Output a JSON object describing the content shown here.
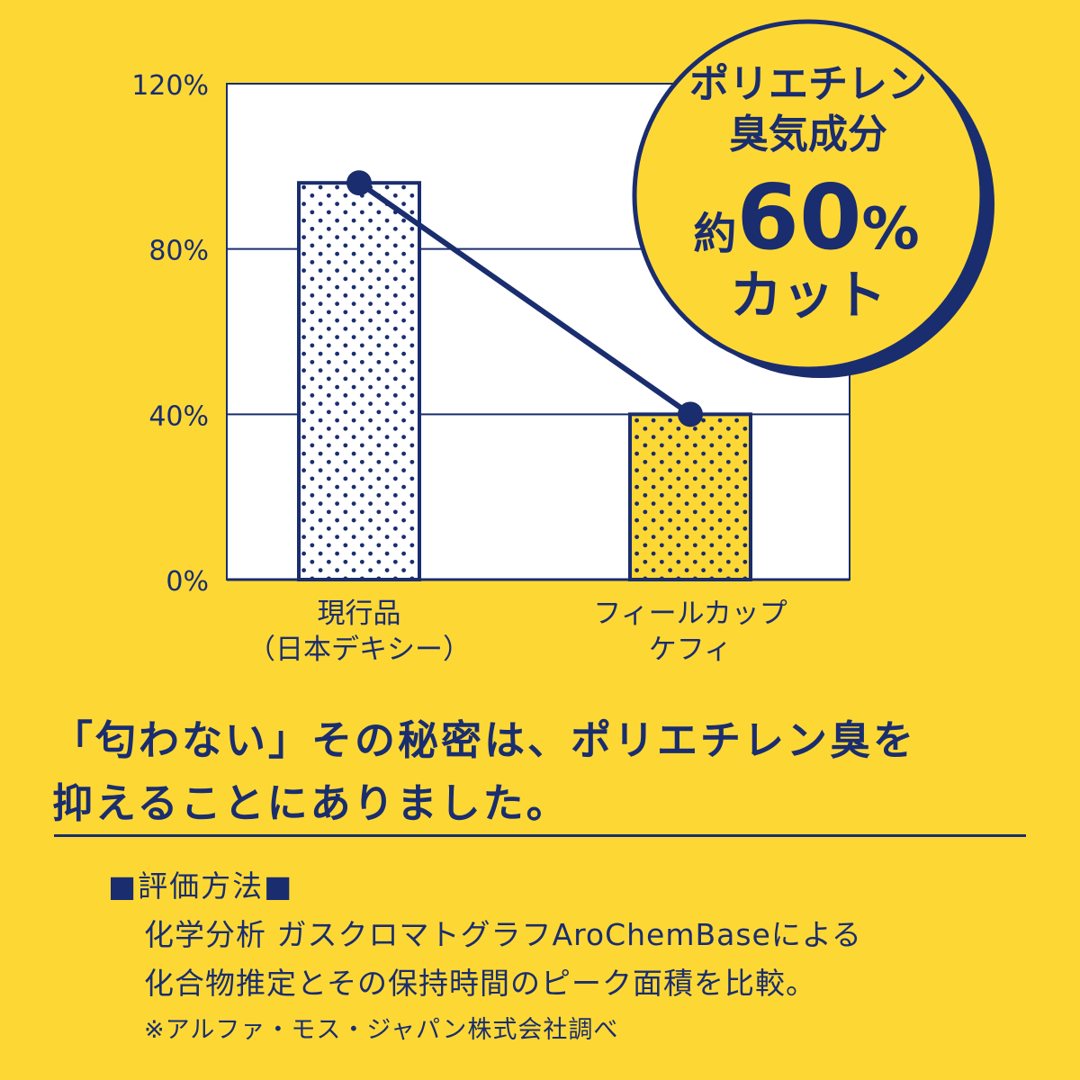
{
  "chart_data": {
    "type": "bar",
    "categories": [
      [
        "現行品",
        "（日本デキシー）"
      ],
      [
        "フィールカップ",
        "ケフィ"
      ]
    ],
    "values": [
      96,
      40
    ],
    "ylim": [
      0,
      120
    ],
    "yticks": [
      0,
      40,
      80,
      120
    ],
    "ytick_labels": [
      "0%",
      "40%",
      "80%",
      "120%"
    ],
    "grid": true,
    "connector_line": true,
    "colors": {
      "navy": "#1A2D6E",
      "background": "#FDD835",
      "plot_area": "#FFFFFF",
      "bar1_fill": "#FFFFFF",
      "bar2_fill": "#FDD835"
    }
  },
  "badge": {
    "line1": "ポリエチレン",
    "line2": "臭気成分",
    "prefix": "約",
    "value": "60",
    "unit": "%",
    "line4": "カット"
  },
  "headline": {
    "line1": "「匂わない」その秘密は、ポリエチレン臭を",
    "line2": "抑えることにありました。"
  },
  "method": {
    "title": "■評価方法■",
    "line1": "化学分析 ガスクロマトグラフAroChemBaseによる",
    "line2": "化合物推定とその保持時間のピーク面積を比較。",
    "note": "※アルファ・モス・ジャパン株式会社調べ"
  }
}
